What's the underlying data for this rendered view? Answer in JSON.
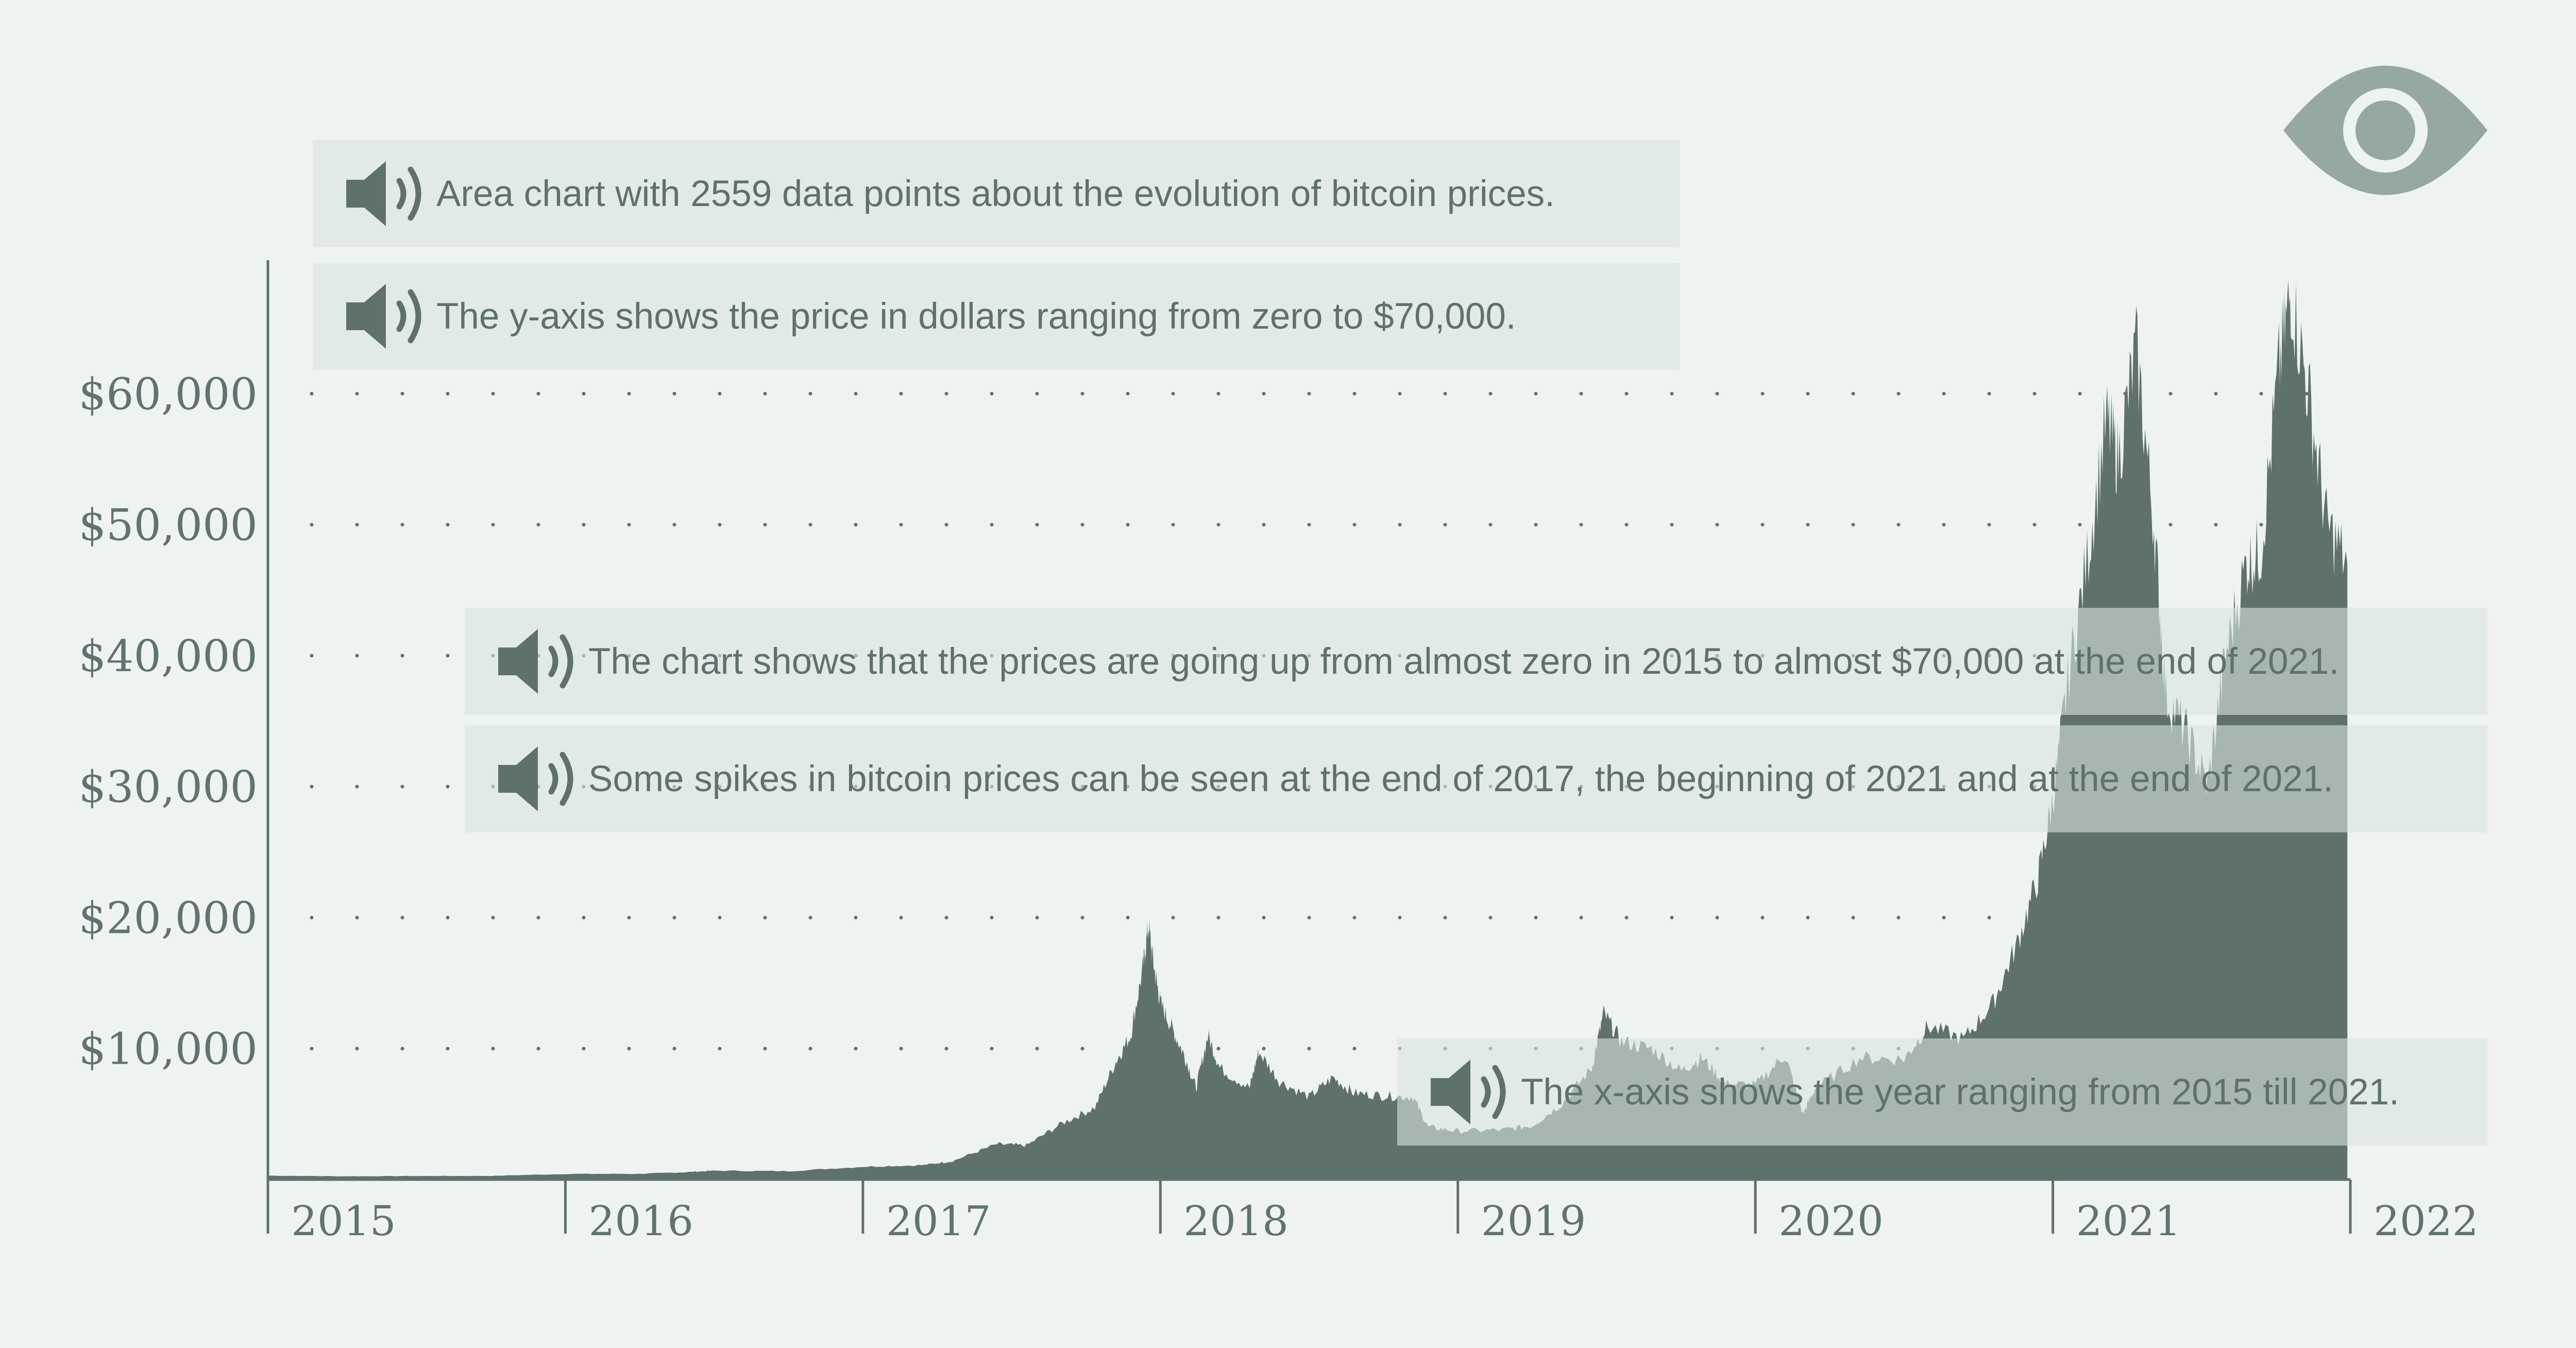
{
  "chart_data": {
    "type": "area",
    "title": "",
    "xlabel": "",
    "ylabel": "",
    "x_ticks": [
      "2015",
      "2016",
      "2017",
      "2018",
      "2019",
      "2020",
      "2021",
      "2022"
    ],
    "y_ticks": [
      "$10,000",
      "$20,000",
      "$30,000",
      "$40,000",
      "$50,000",
      "$60,000"
    ],
    "ylim": [
      0,
      70000
    ],
    "xlim": [
      2015,
      2022
    ],
    "grid": "dotted horizontal",
    "fill_color": "#5e716c",
    "points": [
      [
        2015.0,
        300
      ],
      [
        2015.25,
        250
      ],
      [
        2015.5,
        270
      ],
      [
        2015.75,
        280
      ],
      [
        2016.0,
        430
      ],
      [
        2016.25,
        440
      ],
      [
        2016.4,
        560
      ],
      [
        2016.5,
        680
      ],
      [
        2016.75,
        640
      ],
      [
        2017.0,
        980
      ],
      [
        2017.2,
        1100
      ],
      [
        2017.3,
        1400
      ],
      [
        2017.45,
        2700
      ],
      [
        2017.55,
        2600
      ],
      [
        2017.67,
        4300
      ],
      [
        2017.78,
        5500
      ],
      [
        2017.85,
        9000
      ],
      [
        2017.9,
        11000
      ],
      [
        2017.94,
        16000
      ],
      [
        2017.96,
        19400
      ],
      [
        2017.98,
        16000
      ],
      [
        2018.0,
        13500
      ],
      [
        2018.04,
        11500
      ],
      [
        2018.08,
        9500
      ],
      [
        2018.12,
        7000
      ],
      [
        2018.16,
        11000
      ],
      [
        2018.2,
        8500
      ],
      [
        2018.3,
        7000
      ],
      [
        2018.33,
        9800
      ],
      [
        2018.4,
        7500
      ],
      [
        2018.5,
        6300
      ],
      [
        2018.58,
        7800
      ],
      [
        2018.65,
        6600
      ],
      [
        2018.75,
        6400
      ],
      [
        2018.85,
        6300
      ],
      [
        2018.9,
        4000
      ],
      [
        2019.0,
        3700
      ],
      [
        2019.15,
        3800
      ],
      [
        2019.25,
        4100
      ],
      [
        2019.35,
        5800
      ],
      [
        2019.45,
        8500
      ],
      [
        2019.49,
        12700
      ],
      [
        2019.55,
        10500
      ],
      [
        2019.65,
        10000
      ],
      [
        2019.75,
        8300
      ],
      [
        2019.82,
        9300
      ],
      [
        2019.9,
        7300
      ],
      [
        2020.0,
        7200
      ],
      [
        2020.1,
        9500
      ],
      [
        2020.16,
        5000
      ],
      [
        2020.2,
        6900
      ],
      [
        2020.35,
        9300
      ],
      [
        2020.5,
        9200
      ],
      [
        2020.58,
        11700
      ],
      [
        2020.7,
        10700
      ],
      [
        2020.8,
        13500
      ],
      [
        2020.88,
        18000
      ],
      [
        2020.95,
        23000
      ],
      [
        2021.0,
        29000
      ],
      [
        2021.05,
        38000
      ],
      [
        2021.12,
        48000
      ],
      [
        2021.18,
        58000
      ],
      [
        2021.22,
        55000
      ],
      [
        2021.28,
        63500
      ],
      [
        2021.34,
        50000
      ],
      [
        2021.38,
        37000
      ],
      [
        2021.45,
        34000
      ],
      [
        2021.52,
        30000
      ],
      [
        2021.58,
        40000
      ],
      [
        2021.65,
        47000
      ],
      [
        2021.7,
        48000
      ],
      [
        2021.76,
        62000
      ],
      [
        2021.8,
        67800
      ],
      [
        2021.86,
        60000
      ],
      [
        2021.92,
        50000
      ],
      [
        2021.99,
        47000
      ]
    ]
  },
  "annotations": [
    {
      "text": "Area chart with 2559 data points about the evolution of bitcoin prices."
    },
    {
      "text": "The y-axis shows the price in dollars ranging from zero to $70,000."
    },
    {
      "text": "The chart shows that the prices are going up from almost zero in 2015 to almost $70,000 at the end of 2021."
    },
    {
      "text": "Some spikes in bitcoin prices can be seen at the end of 2017, the beginning of 2021 and at the end of 2021."
    },
    {
      "text": "The x-axis shows the year ranging from 2015 till 2021."
    }
  ],
  "icons": {
    "speaker": "speaker-icon",
    "eye": "eye-icon"
  },
  "colors": {
    "background": "#eef2f0",
    "accent": "#5e716c",
    "callout_bg": "#d8e4e1",
    "text": "#5e716d"
  }
}
